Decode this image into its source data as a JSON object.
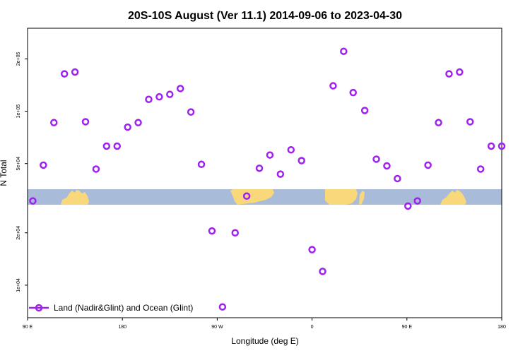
{
  "chart_data": {
    "type": "scatter",
    "title": "20S-10S August (Ver 11.1)   2014-09-06 to 2023-04-30",
    "xlabel": "Longitude (deg E)",
    "ylabel": "N Total",
    "x_ticks": [
      {
        "value": 90,
        "label": "90 E"
      },
      {
        "value": 180,
        "label": "180"
      },
      {
        "value": 270,
        "label": "90 W"
      },
      {
        "value": 360,
        "label": "0"
      },
      {
        "value": 450,
        "label": "90 E"
      },
      {
        "value": 540,
        "label": "180"
      }
    ],
    "xlim": [
      90,
      540
    ],
    "y_scale": "log",
    "y_ticks": [
      {
        "value": 10000,
        "label": "1e+04"
      },
      {
        "value": 20000,
        "label": "2e+04"
      },
      {
        "value": 50000,
        "label": "5e+04"
      },
      {
        "value": 100000,
        "label": "1e+05"
      },
      {
        "value": 200000,
        "label": "2e+05"
      }
    ],
    "ylim": [
      6500,
      300000
    ],
    "series": [
      {
        "name": "Land (Nadir&Glint) and Ocean (Glint)",
        "color": "#a020f0",
        "marker": "open-circle",
        "points": [
          [
            95,
            30500
          ],
          [
            105,
            49000
          ],
          [
            115,
            86000
          ],
          [
            125,
            164000
          ],
          [
            135,
            168000
          ],
          [
            145,
            87000
          ],
          [
            155,
            46500
          ],
          [
            165,
            63000
          ],
          [
            175,
            63000
          ],
          [
            185,
            81000
          ],
          [
            195,
            86000
          ],
          [
            205,
            117000
          ],
          [
            215,
            121000
          ],
          [
            225,
            125000
          ],
          [
            235,
            135000
          ],
          [
            245,
            99000
          ],
          [
            255,
            49500
          ],
          [
            265,
            20500
          ],
          [
            275,
            7500
          ],
          [
            287,
            20000
          ],
          [
            298,
            32500
          ],
          [
            310,
            47000
          ],
          [
            320,
            56000
          ],
          [
            330,
            43500
          ],
          [
            340,
            60000
          ],
          [
            350,
            52000
          ],
          [
            360,
            16000
          ],
          [
            370,
            12000
          ],
          [
            380,
            140000
          ],
          [
            390,
            221000
          ],
          [
            399,
            128000
          ],
          [
            410,
            101000
          ],
          [
            421,
            53000
          ],
          [
            431,
            48500
          ],
          [
            441,
            41000
          ],
          [
            451,
            28500
          ],
          [
            460,
            30500
          ],
          [
            470,
            49000
          ],
          [
            480,
            86000
          ],
          [
            490,
            164000
          ],
          [
            500,
            168000
          ],
          [
            510,
            87000
          ],
          [
            520,
            46500
          ],
          [
            530,
            63000
          ],
          [
            540,
            63000
          ]
        ]
      }
    ],
    "legend_position": "bottom-left",
    "grid": false,
    "background_strip": {
      "ocean_color": "#a8bbd8",
      "land_color": "#f8d87a"
    }
  }
}
